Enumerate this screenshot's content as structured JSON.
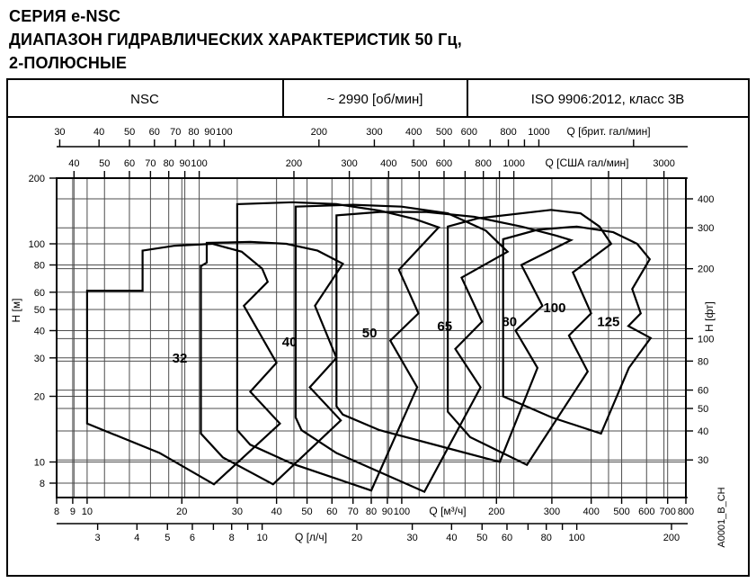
{
  "title": {
    "line1": "СЕРИЯ e-NSC",
    "line2": "ДИАПАЗОН ГИДРАВЛИЧЕСКИХ ХАРАКТЕРИСТИК 50 Гц,",
    "line3": "2-ПОЛЮСНЫЕ"
  },
  "header": {
    "series": "NSC",
    "speed": "~ 2990 [об/мин]",
    "standard": "ISO 9906:2012, класс 3В"
  },
  "side_note": "A0001_B_CH",
  "colors": {
    "line": "#000000",
    "grid": "#4d4d4d",
    "bg": "#ffffff"
  },
  "chart_data": {
    "type": "area",
    "description": "Hydraulic range chart (log-log): head H vs flow Q envelopes for pump sizes NSC 32-125, 2950 rpm, 50 Hz",
    "x_range_m3h": [
      8,
      800
    ],
    "y_range_m": [
      6.9,
      200
    ],
    "axes": {
      "top_brit": {
        "label": "Q [брит. гал/мин]",
        "ticks": [
          30,
          40,
          50,
          60,
          70,
          80,
          90,
          100,
          200,
          300,
          400,
          500,
          600,
          800,
          1000
        ],
        "minor": [
          700,
          900,
          2000
        ]
      },
      "top_usa": {
        "label": "Q [США гал/мин]",
        "ticks": [
          40,
          50,
          60,
          70,
          80,
          90,
          100,
          200,
          300,
          400,
          500,
          600,
          800,
          1000,
          3000
        ],
        "minor": [
          700,
          900,
          2000
        ]
      },
      "bottom_m3h": {
        "label": "Q [м³/ч]",
        "ticks": [
          8,
          9,
          10,
          20,
          30,
          40,
          50,
          60,
          70,
          80,
          90,
          100,
          200,
          300,
          400,
          500,
          600,
          700,
          800
        ],
        "minor": []
      },
      "bottom_ls": {
        "label": "Q [л/ч]",
        "ticks": [
          3,
          4,
          5,
          6,
          8,
          10,
          20,
          30,
          40,
          50,
          60,
          80,
          100,
          200
        ],
        "minor": [
          7,
          9,
          70,
          90
        ]
      },
      "left_m": {
        "label": "H [м]",
        "ticks": [
          200,
          100,
          80,
          60,
          50,
          40,
          30,
          20,
          10,
          8
        ]
      },
      "right_ft": {
        "label": "H [фт]",
        "ticks": [
          400,
          300,
          200,
          100,
          80,
          60,
          50,
          40,
          30
        ]
      }
    },
    "grid": {
      "v_m3h": [
        9,
        10,
        20,
        30,
        40,
        50,
        60,
        70,
        80,
        90,
        100,
        200,
        300,
        400,
        500,
        600,
        700,
        800
      ],
      "v_usgpm": [
        40,
        50,
        60,
        70,
        80,
        90,
        100,
        200,
        300,
        400,
        500,
        600,
        700,
        800,
        900,
        1000,
        2000,
        3000
      ],
      "h_m": [
        100,
        80,
        60,
        50,
        40,
        30,
        20,
        10,
        8
      ],
      "h_ft": [
        400,
        300,
        200,
        100,
        80,
        60,
        50,
        40,
        30
      ]
    },
    "series": [
      {
        "name": "32",
        "label_text": "32",
        "label_at": [
          19.7,
          30
        ],
        "points": [
          [
            10,
            15
          ],
          [
            10,
            61
          ],
          [
            15,
            61
          ],
          [
            15,
            93
          ],
          [
            19,
            98
          ],
          [
            25,
            100
          ],
          [
            31,
            92
          ],
          [
            36,
            77
          ],
          [
            37.5,
            67
          ],
          [
            31.5,
            52
          ],
          [
            40,
            28.5
          ],
          [
            33,
            21
          ],
          [
            41,
            15
          ],
          [
            25.3,
            7.9
          ],
          [
            17,
            11
          ],
          [
            10,
            15
          ]
        ]
      },
      {
        "name": "40",
        "label_text": "40",
        "label_at": [
          44,
          35.5
        ],
        "points": [
          [
            23,
            13.5
          ],
          [
            23,
            79
          ],
          [
            24,
            82
          ],
          [
            24,
            101
          ],
          [
            33,
            102
          ],
          [
            43,
            100
          ],
          [
            54,
            93
          ],
          [
            65,
            81
          ],
          [
            53,
            52
          ],
          [
            62,
            30
          ],
          [
            51,
            22
          ],
          [
            64,
            15.5
          ],
          [
            39,
            7.9
          ],
          [
            27,
            10.5
          ],
          [
            23,
            13.5
          ]
        ]
      },
      {
        "name": "50",
        "label_text": "50",
        "label_at": [
          79,
          39
        ],
        "points": [
          [
            30,
            14
          ],
          [
            30,
            152
          ],
          [
            45,
            155
          ],
          [
            62,
            152
          ],
          [
            85,
            142
          ],
          [
            110,
            130
          ],
          [
            131,
            119
          ],
          [
            98,
            76
          ],
          [
            113,
            48
          ],
          [
            92,
            36
          ],
          [
            112,
            22
          ],
          [
            80,
            7.4
          ],
          [
            45,
            9.8
          ],
          [
            33,
            12
          ],
          [
            30,
            14
          ]
        ]
      },
      {
        "name": "65",
        "label_text": "65",
        "label_at": [
          137,
          42
        ],
        "points": [
          [
            46,
            16
          ],
          [
            46,
            148
          ],
          [
            70,
            151
          ],
          [
            100,
            148
          ],
          [
            140,
            138
          ],
          [
            185,
            115
          ],
          [
            217,
            92
          ],
          [
            155,
            70
          ],
          [
            180,
            44
          ],
          [
            148,
            33
          ],
          [
            178,
            22
          ],
          [
            118,
            7.3
          ],
          [
            62,
            11
          ],
          [
            48,
            14
          ],
          [
            46,
            16
          ]
        ]
      },
      {
        "name": "80",
        "label_text": "80",
        "label_at": [
          220,
          44
        ],
        "points": [
          [
            62,
            18
          ],
          [
            62,
            135
          ],
          [
            85,
            140
          ],
          [
            120,
            140
          ],
          [
            170,
            133
          ],
          [
            240,
            120
          ],
          [
            310,
            109
          ],
          [
            345,
            104
          ],
          [
            240,
            80
          ],
          [
            280,
            52
          ],
          [
            230,
            40
          ],
          [
            270,
            27
          ],
          [
            205,
            10
          ],
          [
            85,
            14
          ],
          [
            65,
            16.5
          ],
          [
            62,
            18
          ]
        ]
      },
      {
        "name": "100",
        "label_text": "100",
        "label_at": [
          306,
          51
        ],
        "points": [
          [
            140,
            17
          ],
          [
            140,
            120
          ],
          [
            175,
            131
          ],
          [
            298,
            143
          ],
          [
            370,
            138
          ],
          [
            425,
            120
          ],
          [
            463,
            100
          ],
          [
            350,
            74
          ],
          [
            400,
            48
          ],
          [
            340,
            38
          ],
          [
            390,
            26
          ],
          [
            250,
            9.7
          ],
          [
            165,
            13
          ],
          [
            140,
            17
          ]
        ]
      },
      {
        "name": "125",
        "label_text": "125",
        "label_at": [
          454,
          44
        ],
        "points": [
          [
            210,
            20
          ],
          [
            210,
            105
          ],
          [
            270,
            116
          ],
          [
            360,
            120
          ],
          [
            470,
            113
          ],
          [
            560,
            100
          ],
          [
            614,
            85
          ],
          [
            540,
            62
          ],
          [
            575,
            48
          ],
          [
            525,
            42
          ],
          [
            618,
            37
          ],
          [
            527,
            27
          ],
          [
            430,
            13.5
          ],
          [
            300,
            16
          ],
          [
            210,
            20
          ]
        ]
      }
    ]
  }
}
